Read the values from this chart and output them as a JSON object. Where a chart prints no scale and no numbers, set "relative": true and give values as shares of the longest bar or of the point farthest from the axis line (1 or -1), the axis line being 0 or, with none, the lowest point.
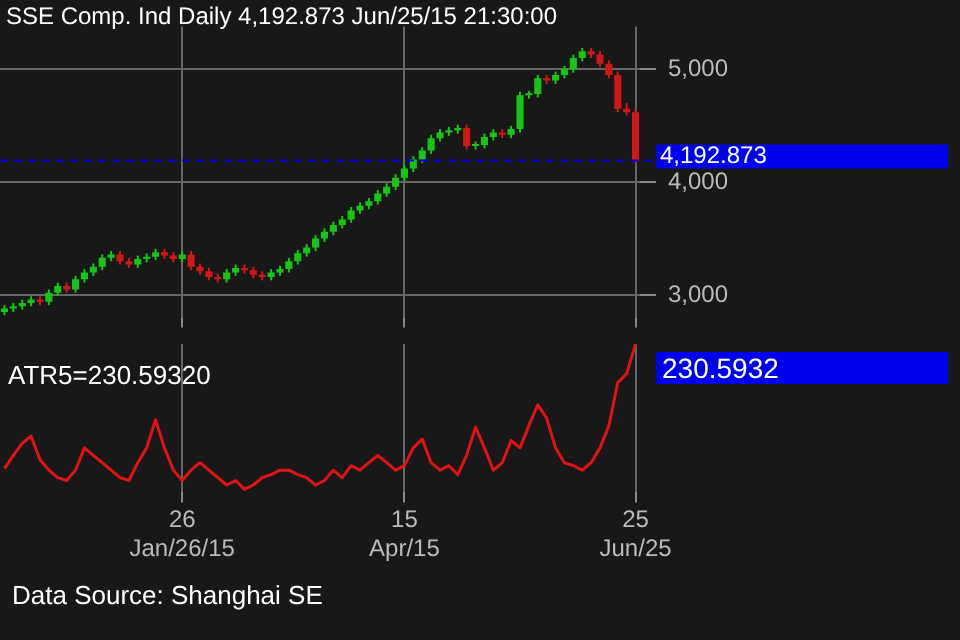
{
  "chart_data": [
    {
      "type": "candlestick",
      "title": "SSE Comp. Ind Daily 4,192.873 Jun/25/15 21:30:00",
      "categories": [
        null,
        null,
        null,
        null,
        null,
        null,
        null,
        null,
        null,
        null,
        null,
        null,
        null,
        null,
        null,
        null,
        null,
        null,
        null,
        null,
        null,
        null,
        null,
        null,
        null,
        null,
        null,
        null,
        null,
        null,
        null,
        null,
        null,
        null,
        null,
        null,
        null,
        null,
        null,
        null,
        null,
        null,
        null,
        null,
        null,
        null,
        null,
        null,
        null,
        null,
        null,
        null,
        null,
        null,
        null,
        null,
        null,
        null,
        null,
        null,
        null,
        null,
        null,
        null,
        null,
        null,
        null,
        null,
        null,
        null,
        null,
        null
      ],
      "ohlc": [
        [
          2850,
          2910,
          2820,
          2880
        ],
        [
          2880,
          2930,
          2850,
          2900
        ],
        [
          2900,
          2960,
          2870,
          2930
        ],
        [
          2930,
          2990,
          2900,
          2960
        ],
        [
          2960,
          2990,
          2910,
          2940
        ],
        [
          2940,
          3050,
          2910,
          3020
        ],
        [
          3020,
          3110,
          2990,
          3080
        ],
        [
          3080,
          3110,
          3020,
          3050
        ],
        [
          3050,
          3170,
          3020,
          3140
        ],
        [
          3140,
          3230,
          3110,
          3200
        ],
        [
          3200,
          3280,
          3170,
          3250
        ],
        [
          3250,
          3360,
          3220,
          3330
        ],
        [
          3330,
          3390,
          3300,
          3360
        ],
        [
          3360,
          3390,
          3270,
          3300
        ],
        [
          3300,
          3330,
          3240,
          3270
        ],
        [
          3270,
          3350,
          3240,
          3320
        ],
        [
          3320,
          3370,
          3290,
          3340
        ],
        [
          3340,
          3410,
          3310,
          3380
        ],
        [
          3380,
          3410,
          3320,
          3350
        ],
        [
          3350,
          3380,
          3290,
          3320
        ],
        [
          3320,
          3390,
          3290,
          3360
        ],
        [
          3360,
          3390,
          3220,
          3250
        ],
        [
          3250,
          3280,
          3180,
          3210
        ],
        [
          3210,
          3240,
          3130,
          3160
        ],
        [
          3160,
          3190,
          3110,
          3140
        ],
        [
          3140,
          3230,
          3110,
          3200
        ],
        [
          3200,
          3270,
          3170,
          3240
        ],
        [
          3240,
          3270,
          3190,
          3220
        ],
        [
          3220,
          3250,
          3150,
          3180
        ],
        [
          3180,
          3210,
          3130,
          3160
        ],
        [
          3160,
          3230,
          3130,
          3200
        ],
        [
          3200,
          3260,
          3170,
          3230
        ],
        [
          3230,
          3330,
          3200,
          3300
        ],
        [
          3300,
          3400,
          3270,
          3370
        ],
        [
          3370,
          3450,
          3340,
          3420
        ],
        [
          3420,
          3530,
          3390,
          3500
        ],
        [
          3500,
          3590,
          3470,
          3560
        ],
        [
          3560,
          3650,
          3530,
          3620
        ],
        [
          3620,
          3700,
          3590,
          3670
        ],
        [
          3670,
          3780,
          3640,
          3750
        ],
        [
          3750,
          3820,
          3720,
          3790
        ],
        [
          3790,
          3860,
          3760,
          3830
        ],
        [
          3830,
          3930,
          3800,
          3900
        ],
        [
          3900,
          3990,
          3870,
          3960
        ],
        [
          3960,
          4070,
          3930,
          4040
        ],
        [
          4040,
          4150,
          4010,
          4120
        ],
        [
          4120,
          4230,
          4090,
          4200
        ],
        [
          4200,
          4310,
          4170,
          4280
        ],
        [
          4280,
          4420,
          4250,
          4390
        ],
        [
          4390,
          4470,
          4360,
          4440
        ],
        [
          4440,
          4490,
          4410,
          4460
        ],
        [
          4460,
          4510,
          4430,
          4480
        ],
        [
          4480,
          4510,
          4290,
          4320
        ],
        [
          4320,
          4360,
          4290,
          4330
        ],
        [
          4330,
          4430,
          4300,
          4400
        ],
        [
          4400,
          4470,
          4370,
          4440
        ],
        [
          4440,
          4470,
          4390,
          4420
        ],
        [
          4420,
          4500,
          4390,
          4470
        ],
        [
          4470,
          4800,
          4440,
          4770
        ],
        [
          4770,
          4810,
          4740,
          4780
        ],
        [
          4780,
          4950,
          4750,
          4920
        ],
        [
          4920,
          4950,
          4870,
          4900
        ],
        [
          4900,
          4980,
          4870,
          4950
        ],
        [
          4950,
          5030,
          4920,
          5000
        ],
        [
          5000,
          5130,
          4970,
          5100
        ],
        [
          5100,
          5190,
          5070,
          5160
        ],
        [
          5160,
          5190,
          5100,
          5130
        ],
        [
          5130,
          5160,
          5020,
          5050
        ],
        [
          5050,
          5080,
          4920,
          4950
        ],
        [
          4950,
          4980,
          4620,
          4650
        ],
        [
          4650,
          4700,
          4590,
          4620
        ],
        [
          4620,
          4650,
          4160,
          4192.873
        ]
      ],
      "colors": [
        "#18c418",
        "#18c418",
        "#18c418",
        "#18c418",
        "#d01818",
        "#18c418",
        "#18c418",
        "#d01818",
        "#18c418",
        "#18c418",
        "#18c418",
        "#18c418",
        "#18c418",
        "#d01818",
        "#d01818",
        "#18c418",
        "#18c418",
        "#18c418",
        "#d01818",
        "#d01818",
        "#18c418",
        "#d01818",
        "#d01818",
        "#d01818",
        "#d01818",
        "#18c418",
        "#18c418",
        "#d01818",
        "#d01818",
        "#d01818",
        "#18c418",
        "#18c418",
        "#18c418",
        "#18c418",
        "#18c418",
        "#18c418",
        "#18c418",
        "#18c418",
        "#18c418",
        "#18c418",
        "#18c418",
        "#18c418",
        "#18c418",
        "#18c418",
        "#18c418",
        "#18c418",
        "#18c418",
        "#18c418",
        "#18c418",
        "#18c418",
        "#18c418",
        "#18c418",
        "#d01818",
        "#18c418",
        "#18c418",
        "#18c418",
        "#d01818",
        "#18c418",
        "#18c418",
        "#18c418",
        "#18c418",
        "#d01818",
        "#18c418",
        "#18c418",
        "#18c418",
        "#18c418",
        "#d01818",
        "#d01818",
        "#d01818",
        "#d01818",
        "#d01818",
        "#d01818"
      ],
      "ylim": [
        2800,
        5380
      ],
      "yticks": [
        {
          "value": 3000,
          "label": "3,000"
        },
        {
          "value": 4000,
          "label": "4,000"
        },
        {
          "value": 5000,
          "label": "5,000"
        }
      ],
      "ref_lines": [
        {
          "axis": "y",
          "value": 4192.873,
          "label": "4,192.873",
          "color": "#0000ee",
          "line_style": "dashed"
        }
      ],
      "grid": true,
      "legend": false,
      "tick_labels": "y"
    },
    {
      "type": "line",
      "categories": [
        null,
        null,
        null,
        null,
        null,
        null,
        null,
        null,
        null,
        null,
        null,
        null,
        null,
        null,
        null,
        null,
        null,
        null,
        null,
        null,
        "26\nJan/26/15",
        null,
        null,
        null,
        null,
        null,
        null,
        null,
        null,
        null,
        null,
        null,
        null,
        null,
        null,
        null,
        null,
        null,
        null,
        null,
        null,
        null,
        null,
        null,
        null,
        "15\nApr/15",
        null,
        null,
        null,
        null,
        null,
        null,
        null,
        null,
        null,
        null,
        null,
        null,
        null,
        null,
        null,
        null,
        null,
        null,
        null,
        null,
        null,
        null,
        null,
        null,
        null,
        "25\nJun/25"
      ],
      "series": [
        {
          "color": "#e01414",
          "values": [
            0.16,
            0.25,
            0.33,
            0.38,
            0.22,
            0.15,
            0.1,
            0.08,
            0.15,
            0.3,
            0.25,
            0.2,
            0.15,
            0.1,
            0.08,
            0.2,
            0.3,
            0.49,
            0.3,
            0.15,
            0.08,
            0.15,
            0.2,
            0.15,
            0.1,
            0.05,
            0.08,
            0.02,
            0.05,
            0.1,
            0.12,
            0.15,
            0.15,
            0.12,
            0.1,
            0.05,
            0.08,
            0.15,
            0.1,
            0.18,
            0.15,
            0.2,
            0.25,
            0.2,
            0.15,
            0.18,
            0.3,
            0.36,
            0.2,
            0.15,
            0.18,
            0.12,
            0.25,
            0.44,
            0.3,
            0.15,
            0.2,
            0.35,
            0.3,
            0.45,
            0.59,
            0.5,
            0.3,
            0.2,
            0.18,
            0.15,
            0.2,
            0.3,
            0.45,
            0.74,
            0.8,
            1
          ]
        }
      ],
      "relative": true,
      "annotations": [
        "ATR5=230.59320",
        "230.5932",
        "Data Source: Shanghai SE"
      ],
      "grid": "x",
      "legend": false,
      "tick_labels": "x",
      "marker": "none"
    }
  ]
}
